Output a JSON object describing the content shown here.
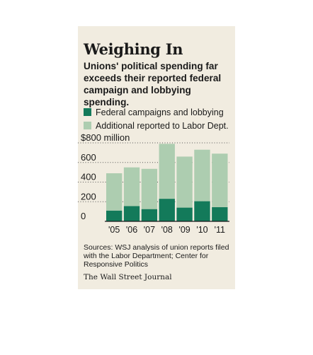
{
  "header": {
    "title": "Weighing In",
    "subtitle": "Unions' political spending far exceeds their reported federal campaign and lobbying spending."
  },
  "colors": {
    "federal": "#137a5a",
    "additional": "#adcdb0",
    "panel": "#f1ece0"
  },
  "chart_data": {
    "type": "bar",
    "stacked": true,
    "categories": [
      "'05",
      "'06",
      "'07",
      "'08",
      "'09",
      "'10",
      "'11"
    ],
    "series": [
      {
        "name": "Federal campaigns and lobbying",
        "values": [
          110,
          155,
          125,
          230,
          140,
          205,
          145
        ]
      },
      {
        "name": "Additional reported to Labor Dept.",
        "values": [
          380,
          395,
          410,
          560,
          520,
          525,
          545
        ]
      }
    ],
    "y_ticks": [
      0,
      200,
      400,
      600,
      800
    ],
    "y_tick_labels": [
      "0",
      "200",
      "400",
      "600",
      "$800 million"
    ],
    "ylim": [
      0,
      800
    ],
    "grid": "dotted",
    "legend_position": "top"
  },
  "footer": {
    "source": "Sources: WSJ analysis of union reports filed with the Labor Department; Center for Responsive Politics",
    "credit": "The Wall Street Journal"
  }
}
